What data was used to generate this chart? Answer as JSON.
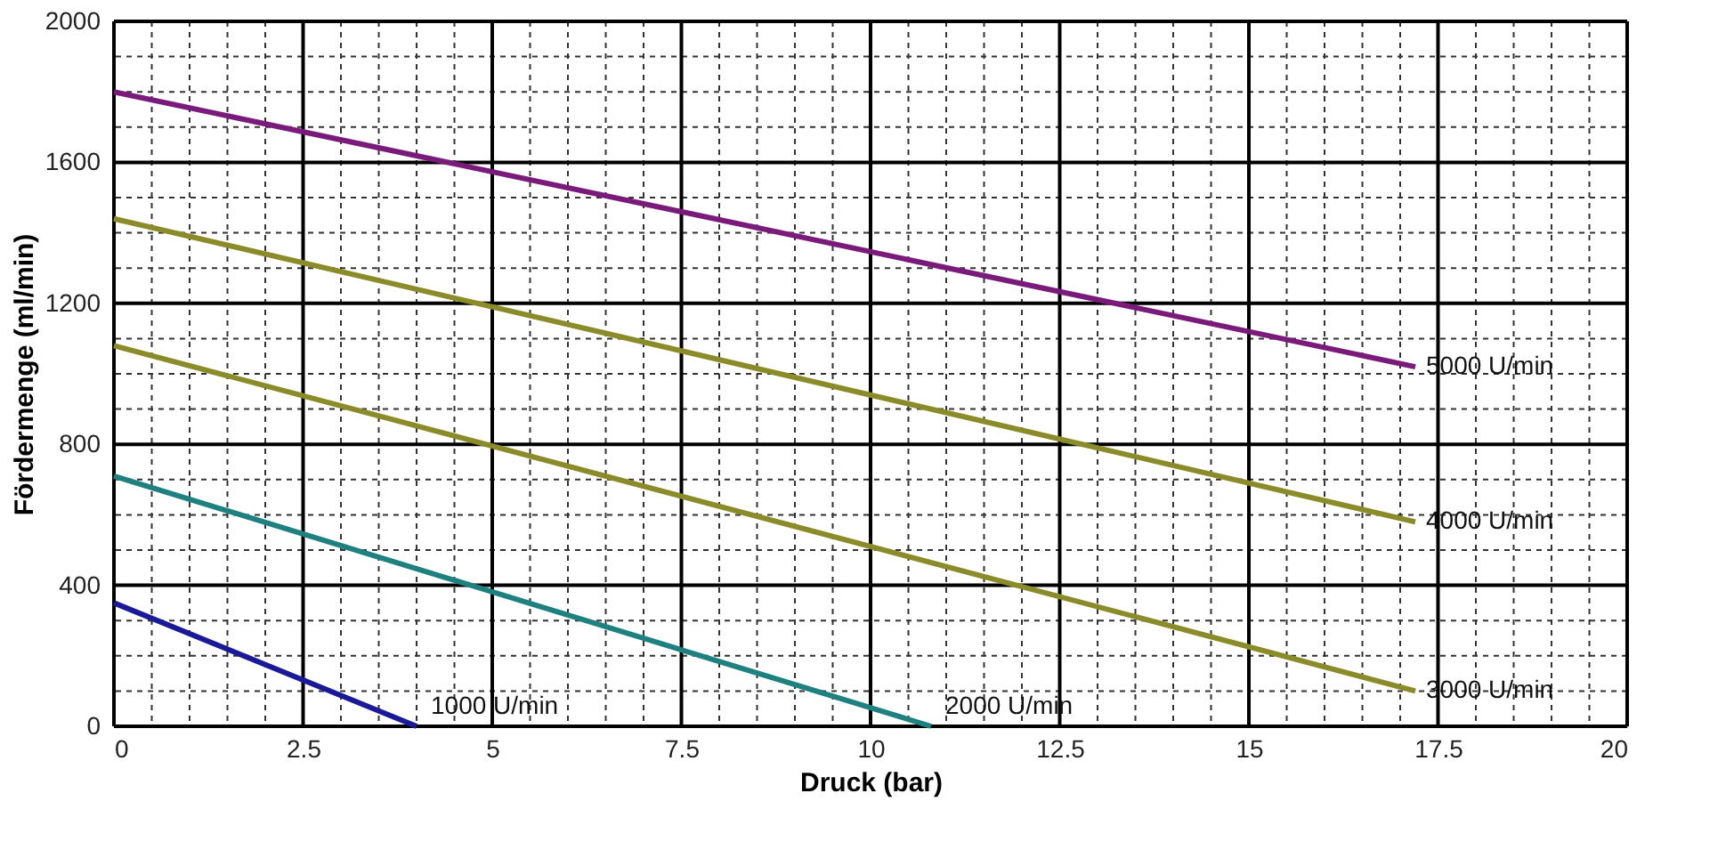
{
  "chart_data": {
    "type": "line",
    "xlabel": "Druck (bar)",
    "ylabel": "Fördermenge (ml/min)",
    "xlim": [
      0,
      20
    ],
    "ylim": [
      0,
      2000
    ],
    "xticks": [
      0,
      {
        "value": 0.5,
        "label": null
      },
      {
        "value": 1,
        "label": null
      },
      {
        "value": 1.5,
        "label": null
      },
      {
        "value": 2,
        "label": null
      },
      2.5,
      {
        "value": 3,
        "label": null
      },
      {
        "value": 3.5,
        "label": null
      },
      {
        "value": 4,
        "label": null
      },
      {
        "value": 4.5,
        "label": null
      },
      5,
      {
        "value": 5.5,
        "label": null
      },
      {
        "value": 6,
        "label": null
      },
      {
        "value": 6.5,
        "label": null
      },
      {
        "value": 7,
        "label": null
      },
      7.5,
      {
        "value": 8,
        "label": null
      },
      {
        "value": 8.5,
        "label": null
      },
      {
        "value": 9,
        "label": null
      },
      {
        "value": 9.5,
        "label": null
      },
      10,
      {
        "value": 10.5,
        "label": null
      },
      {
        "value": 11,
        "label": null
      },
      {
        "value": 11.5,
        "label": null
      },
      {
        "value": 12,
        "label": null
      },
      12.5,
      {
        "value": 13,
        "label": null
      },
      {
        "value": 13.5,
        "label": null
      },
      {
        "value": 14,
        "label": null
      },
      {
        "value": 14.5,
        "label": null
      },
      15,
      {
        "value": 15.5,
        "label": null
      },
      {
        "value": 16,
        "label": null
      },
      {
        "value": 16.5,
        "label": null
      },
      {
        "value": 17,
        "label": null
      },
      17.5,
      {
        "value": 18,
        "label": null
      },
      {
        "value": 18.5,
        "label": null
      },
      {
        "value": 19,
        "label": null
      },
      {
        "value": 19.5,
        "label": null
      },
      20
    ],
    "yticks": [
      0,
      {
        "value": 100,
        "label": null
      },
      {
        "value": 200,
        "label": null
      },
      {
        "value": 300,
        "label": null
      },
      400,
      {
        "value": 500,
        "label": null
      },
      {
        "value": 600,
        "label": null
      },
      {
        "value": 700,
        "label": null
      },
      800,
      {
        "value": 900,
        "label": null
      },
      {
        "value": 1000,
        "label": null
      },
      {
        "value": 1100,
        "label": null
      },
      1200,
      {
        "value": 1300,
        "label": null
      },
      {
        "value": 1400,
        "label": null
      },
      {
        "value": 1500,
        "label": null
      },
      1600,
      {
        "value": 1700,
        "label": null
      },
      {
        "value": 1800,
        "label": null
      },
      {
        "value": 1900,
        "label": null
      },
      2000
    ],
    "grid": true,
    "marker": "none",
    "line_style": "solid",
    "series": [
      {
        "name": "1000 U/min",
        "color": "#1a1a99",
        "x": [
          0,
          4
        ],
        "values": [
          350,
          0
        ]
      },
      {
        "name": "2000 U/min",
        "color": "#1f8080",
        "x": [
          0,
          10.8
        ],
        "values": [
          710,
          0
        ]
      },
      {
        "name": "3000 U/min",
        "color": "#8b8b2a",
        "x": [
          0,
          17.2
        ],
        "values": [
          1080,
          100
        ]
      },
      {
        "name": "4000 U/min",
        "color": "#8b8b2a",
        "x": [
          0,
          17.2
        ],
        "values": [
          1440,
          580
        ]
      },
      {
        "name": "5000 U/min",
        "color": "#7a1a7a",
        "x": [
          0,
          17.2
        ],
        "values": [
          1800,
          1020
        ]
      }
    ]
  }
}
